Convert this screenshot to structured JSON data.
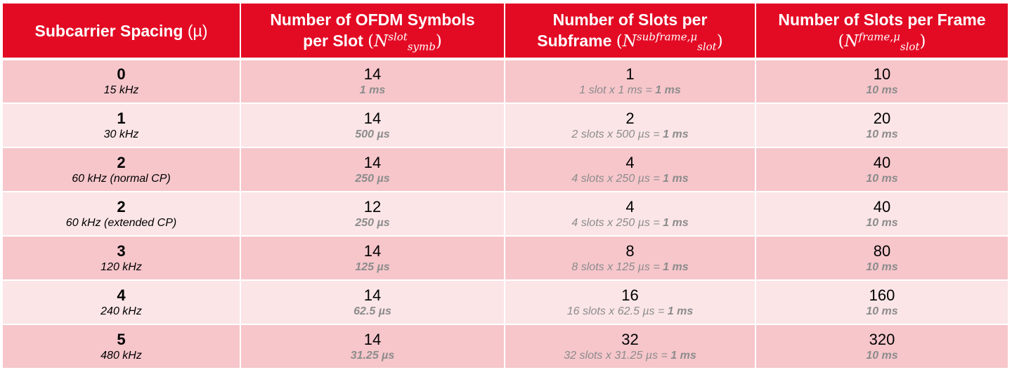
{
  "headers": {
    "col1": {
      "text": "Subcarrier Spacing",
      "paren": "(µ)"
    },
    "col2": {
      "line1": "Number of OFDM Symbols",
      "line2": "per Slot",
      "math_base": "N",
      "math_sup": "slot",
      "math_sub": "symb"
    },
    "col3": {
      "line1": "Number of Slots per",
      "line2": "Subframe",
      "math_base": "N",
      "math_sup": "subframe,μ",
      "math_sub": "slot"
    },
    "col4": {
      "line1": "Number of Slots per Frame",
      "math_base": "N",
      "math_sup": "frame,μ",
      "math_sub": "slot"
    }
  },
  "rows": [
    {
      "mu": "0",
      "scs": "15 kHz",
      "symbols": "14",
      "slot_duration": "1 ms",
      "slots_per_subframe": "1",
      "subframe_calc": "1 slot x 1 ms = ",
      "subframe_total": "1 ms",
      "slots_per_frame": "10",
      "frame_duration": "10 ms"
    },
    {
      "mu": "1",
      "scs": "30 kHz",
      "symbols": "14",
      "slot_duration": "500 µs",
      "slots_per_subframe": "2",
      "subframe_calc": "2 slots x 500 µs = ",
      "subframe_total": "1 ms",
      "slots_per_frame": "20",
      "frame_duration": "10 ms"
    },
    {
      "mu": "2",
      "scs": "60 kHz (normal CP)",
      "symbols": "14",
      "slot_duration": "250 µs",
      "slots_per_subframe": "4",
      "subframe_calc": "4 slots x 250 µs = ",
      "subframe_total": "1 ms",
      "slots_per_frame": "40",
      "frame_duration": "10 ms"
    },
    {
      "mu": "2",
      "scs": "60 kHz (extended CP)",
      "symbols": "12",
      "slot_duration": "250 µs",
      "slots_per_subframe": "4",
      "subframe_calc": "4 slots x 250 µs = ",
      "subframe_total": "1 ms",
      "slots_per_frame": "40",
      "frame_duration": "10 ms"
    },
    {
      "mu": "3",
      "scs": "120 kHz",
      "symbols": "14",
      "slot_duration": "125 µs",
      "slots_per_subframe": "8",
      "subframe_calc": "8 slots x 125 µs = ",
      "subframe_total": "1 ms",
      "slots_per_frame": "80",
      "frame_duration": "10 ms"
    },
    {
      "mu": "4",
      "scs": "240 kHz",
      "symbols": "14",
      "slot_duration": "62.5 µs",
      "slots_per_subframe": "16",
      "subframe_calc": "16 slots x 62.5 µs = ",
      "subframe_total": "1 ms",
      "slots_per_frame": "160",
      "frame_duration": "10 ms"
    },
    {
      "mu": "5",
      "scs": "480 kHz",
      "symbols": "14",
      "slot_duration": "31.25 µs",
      "slots_per_subframe": "32",
      "subframe_calc": "32 slots x 31.25 µs = ",
      "subframe_total": "1 ms",
      "slots_per_frame": "320",
      "frame_duration": "10 ms"
    }
  ],
  "colors": {
    "header_bg": "#e30a24",
    "row_dark": "#f6c6cb",
    "row_light": "#fbe5e7",
    "secondary_text": "#8c8c8c"
  }
}
